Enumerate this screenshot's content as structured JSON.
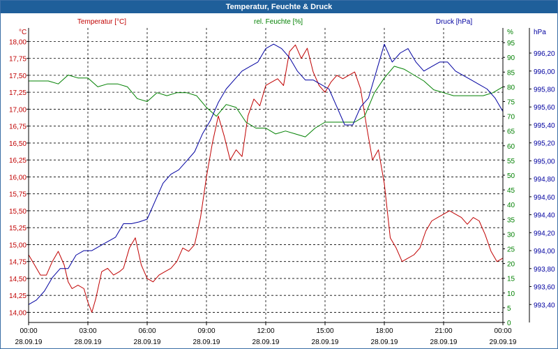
{
  "window": {
    "title": "Temperatur, Feuchte & Druck"
  },
  "chart_data": {
    "type": "line",
    "title": "Temperatur, Feuchte & Druck",
    "axis_labels": {
      "left_unit": "°C",
      "middle_unit": "%",
      "right_unit": "hPa"
    },
    "legend": {
      "temp": "Temperatur [°C]",
      "hum": "rel. Feuchte [%]",
      "press": "Druck [hPa]"
    },
    "colors": {
      "temp": "#c00000",
      "hum": "#008000",
      "press": "#0000a0",
      "title_bar": "#1f5f9a"
    },
    "x_range_hours": [
      0,
      24
    ],
    "x_ticks": [
      {
        "time": "00:00",
        "date": "28.09.19"
      },
      {
        "time": "03:00",
        "date": "28.09.19"
      },
      {
        "time": "06:00",
        "date": "28.09.19"
      },
      {
        "time": "09:00",
        "date": "28.09.19"
      },
      {
        "time": "12:00",
        "date": "28.09.19"
      },
      {
        "time": "15:00",
        "date": "28.09.19"
      },
      {
        "time": "18:00",
        "date": "28.09.19"
      },
      {
        "time": "21:00",
        "date": "28.09.19"
      },
      {
        "time": "00:00",
        "date": "29.09.19"
      }
    ],
    "y_temp": {
      "range": [
        13.85,
        18.2
      ],
      "ticks": [
        "14,00",
        "14,25",
        "14,50",
        "14,75",
        "15,00",
        "15,25",
        "15,50",
        "15,75",
        "16,00",
        "16,25",
        "16,50",
        "16,75",
        "17,00",
        "17,25",
        "17,50",
        "17,75",
        "18,00"
      ]
    },
    "y_hum": {
      "range": [
        0,
        100
      ],
      "ticks": [
        "0",
        "5",
        "10",
        "15",
        "20",
        "25",
        "30",
        "35",
        "40",
        "45",
        "50",
        "55",
        "60",
        "65",
        "70",
        "75",
        "80",
        "85",
        "90",
        "95"
      ],
      "top_label": "%"
    },
    "y_press": {
      "range": [
        993.2,
        996.48
      ],
      "ticks": [
        "993,40",
        "993,60",
        "993,80",
        "994,00",
        "994,20",
        "994,40",
        "994,60",
        "994,80",
        "995,00",
        "995,20",
        "995,40",
        "995,60",
        "995,80",
        "996,00",
        "996,20"
      ]
    },
    "series": [
      {
        "name": "Temperatur [°C]",
        "key": "temp",
        "axis": "temp",
        "x": [
          0,
          0.3,
          0.6,
          0.9,
          1.2,
          1.5,
          1.8,
          2.0,
          2.2,
          2.5,
          2.8,
          3.0,
          3.2,
          3.4,
          3.7,
          4.0,
          4.3,
          4.6,
          4.8,
          5.1,
          5.4,
          5.7,
          6.0,
          6.3,
          6.6,
          6.9,
          7.2,
          7.5,
          7.8,
          8.1,
          8.4,
          8.7,
          9.0,
          9.3,
          9.6,
          9.9,
          10.2,
          10.5,
          10.8,
          11.1,
          11.4,
          11.7,
          12.0,
          12.3,
          12.6,
          12.9,
          13.2,
          13.5,
          13.8,
          14.1,
          14.4,
          14.7,
          15.0,
          15.3,
          15.6,
          15.9,
          16.2,
          16.5,
          16.8,
          17.1,
          17.4,
          17.7,
          18.0,
          18.3,
          18.6,
          18.9,
          19.2,
          19.5,
          19.8,
          20.1,
          20.4,
          20.7,
          21.0,
          21.3,
          21.6,
          21.9,
          22.2,
          22.5,
          22.8,
          23.1,
          23.4,
          23.7,
          24.0
        ],
        "y": [
          14.85,
          14.7,
          14.55,
          14.55,
          14.75,
          14.9,
          14.7,
          14.45,
          14.35,
          14.4,
          14.35,
          14.15,
          14.0,
          14.2,
          14.6,
          14.65,
          14.55,
          14.6,
          14.65,
          14.95,
          15.1,
          14.7,
          14.5,
          14.45,
          14.55,
          14.6,
          14.65,
          14.75,
          14.95,
          14.9,
          15.0,
          15.4,
          16.0,
          16.5,
          16.9,
          16.6,
          16.25,
          16.4,
          16.3,
          16.9,
          17.15,
          17.05,
          17.35,
          17.4,
          17.45,
          17.35,
          17.85,
          17.95,
          17.75,
          17.9,
          17.55,
          17.35,
          17.25,
          17.4,
          17.5,
          17.45,
          17.5,
          17.55,
          17.3,
          16.75,
          16.25,
          16.4,
          15.9,
          15.1,
          14.95,
          14.75,
          14.8,
          14.85,
          14.95,
          15.2,
          15.35,
          15.4,
          15.45,
          15.5,
          15.45,
          15.4,
          15.3,
          15.4,
          15.35,
          15.15,
          14.9,
          14.75,
          14.8
        ]
      },
      {
        "name": "rel. Feuchte [%]",
        "key": "hum",
        "axis": "hum",
        "x": [
          0,
          0.5,
          1.0,
          1.5,
          2.0,
          2.5,
          3.0,
          3.5,
          4.0,
          4.5,
          5.0,
          5.5,
          6.0,
          6.5,
          7.0,
          7.5,
          8.0,
          8.5,
          9.0,
          9.5,
          10.0,
          10.5,
          11.0,
          11.5,
          12.0,
          12.5,
          13.0,
          13.5,
          14.0,
          14.5,
          15.0,
          15.5,
          16.0,
          16.5,
          17.0,
          17.5,
          18.0,
          18.5,
          19.0,
          19.5,
          20.0,
          20.5,
          21.0,
          21.5,
          22.0,
          22.5,
          23.0,
          23.5,
          24.0
        ],
        "y": [
          82,
          82,
          82,
          81,
          84,
          83,
          83,
          80,
          81,
          81,
          80,
          76,
          75,
          78,
          77,
          78,
          78,
          77,
          73,
          70,
          74,
          73,
          68,
          66,
          66,
          64,
          65,
          64,
          63,
          66,
          68,
          68,
          68,
          68,
          70,
          78,
          83,
          87,
          86,
          84,
          82,
          79,
          78,
          77,
          77,
          77,
          77,
          78,
          80
        ]
      },
      {
        "name": "Druck [hPa]",
        "key": "press",
        "axis": "press",
        "x": [
          0,
          0.4,
          0.8,
          1.2,
          1.6,
          2.0,
          2.4,
          2.8,
          3.2,
          3.6,
          4.0,
          4.4,
          4.8,
          5.2,
          5.6,
          6.0,
          6.4,
          6.8,
          7.2,
          7.6,
          8.0,
          8.4,
          8.8,
          9.2,
          9.6,
          10.0,
          10.4,
          10.8,
          11.2,
          11.6,
          12.0,
          12.4,
          12.8,
          13.2,
          13.6,
          14.0,
          14.4,
          14.8,
          15.2,
          15.6,
          16.0,
          16.4,
          16.8,
          17.2,
          17.6,
          18.0,
          18.4,
          18.8,
          19.2,
          19.6,
          20.0,
          20.4,
          20.8,
          21.2,
          21.6,
          22.0,
          22.4,
          22.8,
          23.2,
          23.6,
          24.0
        ],
        "y": [
          993.4,
          993.45,
          993.55,
          993.7,
          993.8,
          993.8,
          993.95,
          994.0,
          994.0,
          994.05,
          994.1,
          994.15,
          994.3,
          994.3,
          994.32,
          994.35,
          994.55,
          994.75,
          994.85,
          994.9,
          995.0,
          995.1,
          995.3,
          995.45,
          995.65,
          995.8,
          995.9,
          996.0,
          996.05,
          996.1,
          996.25,
          996.3,
          996.25,
          996.15,
          996.0,
          995.9,
          995.9,
          995.85,
          995.8,
          995.6,
          995.4,
          995.4,
          995.6,
          995.7,
          996.0,
          996.3,
          996.1,
          996.2,
          996.25,
          996.1,
          996.0,
          996.05,
          996.1,
          996.1,
          996.0,
          995.95,
          995.9,
          995.85,
          995.8,
          995.7,
          995.55
        ]
      }
    ]
  }
}
